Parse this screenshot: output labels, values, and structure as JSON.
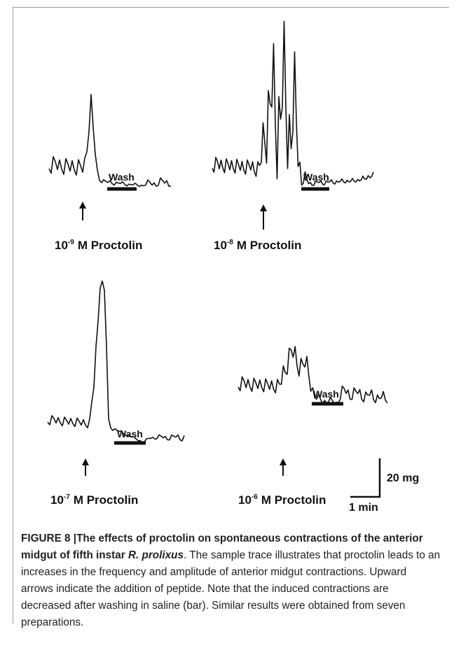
{
  "figure": {
    "panels": [
      {
        "wash": "Wash",
        "base": "10",
        "exponent": "-9",
        "label": "M Proctolin"
      },
      {
        "wash": "Wash",
        "base": "10",
        "exponent": "-8",
        "label": "M Proctolin"
      },
      {
        "wash": "Wash",
        "base": "10",
        "exponent": "-7",
        "label": "M Proctolin"
      },
      {
        "wash": "Wash",
        "base": "10",
        "exponent": "-6",
        "label": "M Proctolin"
      }
    ],
    "scale_bar": {
      "vertical": "20 mg",
      "horizontal": "1 min"
    }
  },
  "caption": {
    "figure_label": "FIGURE 8 |",
    "title": "The effects of proctolin on spontaneous contractions of the anterior midgut of fifth instar ",
    "species": "R. prolixus",
    "body": ". The sample trace illustrates that proctolin leads to an increases in the frequency and amplitude of anterior midgut contractions. Upward arrows indicate the addition of peptide. Note that the induced contractions are decreased after washing in saline (bar). Similar results were obtained from seven preparations."
  }
}
